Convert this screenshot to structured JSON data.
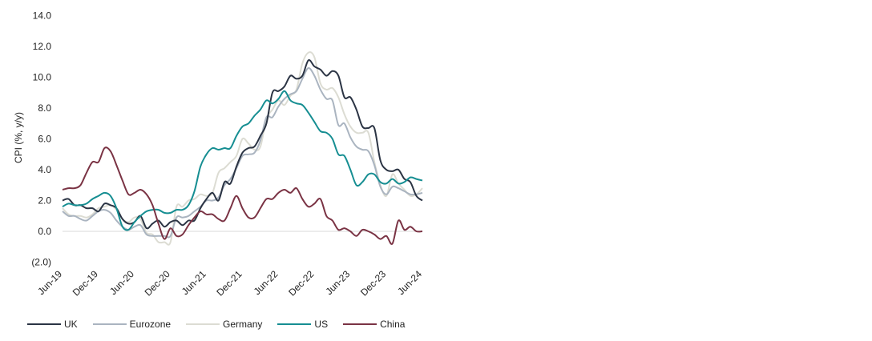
{
  "chart_data": {
    "type": "line",
    "ylabel": "CPI (%, y/y)",
    "ylim": [
      -2,
      14
    ],
    "y_ticks": [
      -2,
      0,
      2,
      4,
      6,
      8,
      10,
      12,
      14
    ],
    "y_tick_labels": [
      "(2.0)",
      "0.0",
      "2.0",
      "4.0",
      "6.0",
      "8.0",
      "10.0",
      "12.0",
      "14.0"
    ],
    "x_tick_labels": [
      "Jun-19",
      "Dec-19",
      "Jun-20",
      "Dec-20",
      "Jun-21",
      "Dec-21",
      "Jun-22",
      "Dec-22",
      "Jun-23",
      "Dec-23",
      "Jun-24"
    ],
    "x_start": "2019-06",
    "x_end": "2024-06",
    "grid": false,
    "legend_position": "bottom-left",
    "series": [
      {
        "name": "UK",
        "color": "#2b3444",
        "values": [
          2.0,
          2.1,
          1.7,
          1.7,
          1.5,
          1.5,
          1.3,
          1.8,
          1.7,
          1.5,
          0.8,
          0.5,
          0.6,
          1.0,
          0.2,
          0.5,
          0.7,
          0.3,
          0.6,
          0.7,
          0.4,
          0.7,
          0.7,
          1.5,
          2.1,
          2.5,
          2.0,
          3.2,
          3.1,
          4.2,
          5.1,
          5.4,
          5.5,
          6.2,
          7.0,
          9.0,
          9.1,
          9.4,
          10.1,
          9.9,
          10.1,
          11.1,
          10.7,
          10.5,
          10.1,
          10.4,
          10.1,
          8.7,
          8.7,
          7.9,
          6.8,
          6.7,
          6.7,
          4.6,
          4.0,
          3.9,
          4.0,
          3.4,
          3.2,
          2.3,
          2.0
        ]
      },
      {
        "name": "Eurozone",
        "color": "#aab4c0",
        "values": [
          1.3,
          1.0,
          1.0,
          0.8,
          0.7,
          1.0,
          1.3,
          1.4,
          1.2,
          0.7,
          0.3,
          0.1,
          0.3,
          0.4,
          -0.2,
          -0.3,
          -0.3,
          -0.3,
          -0.3,
          0.9,
          0.9,
          1.0,
          1.3,
          1.6,
          2.0,
          2.0,
          2.2,
          3.0,
          3.4,
          4.1,
          4.9,
          5.0,
          5.1,
          5.9,
          7.4,
          7.4,
          8.1,
          8.6,
          8.9,
          9.1,
          9.9,
          10.6,
          10.1,
          9.2,
          8.6,
          8.5,
          6.9,
          7.0,
          6.1,
          5.5,
          5.3,
          5.2,
          4.3,
          2.9,
          2.4,
          2.9,
          2.8,
          2.6,
          2.4,
          2.4,
          2.5
        ]
      },
      {
        "name": "Germany",
        "color": "#dcdcd3",
        "values": [
          1.5,
          1.1,
          1.0,
          1.0,
          0.9,
          1.1,
          1.5,
          1.6,
          1.7,
          1.4,
          0.8,
          0.6,
          0.9,
          0.8,
          -0.1,
          -0.2,
          -0.7,
          -0.7,
          -0.7,
          1.6,
          1.6,
          2.0,
          2.1,
          2.4,
          2.3,
          2.5,
          3.8,
          4.1,
          4.5,
          4.9,
          6.0,
          5.7,
          5.3,
          5.5,
          7.3,
          7.9,
          8.5,
          8.2,
          8.8,
          9.2,
          10.9,
          11.6,
          11.3,
          9.6,
          9.2,
          9.3,
          8.7,
          7.6,
          6.8,
          6.4,
          6.4,
          6.4,
          4.5,
          3.0,
          2.3,
          3.7,
          3.1,
          2.7,
          2.3,
          2.4,
          2.8
        ]
      },
      {
        "name": "US",
        "color": "#168e92",
        "values": [
          1.6,
          1.8,
          1.7,
          1.7,
          1.8,
          2.1,
          2.3,
          2.5,
          2.3,
          1.5,
          0.3,
          0.1,
          0.6,
          1.0,
          1.3,
          1.4,
          1.4,
          1.2,
          1.2,
          1.4,
          1.4,
          1.7,
          2.6,
          4.2,
          5.0,
          5.4,
          5.3,
          5.4,
          5.4,
          6.2,
          6.8,
          7.0,
          7.5,
          7.9,
          8.5,
          8.3,
          8.6,
          9.1,
          8.5,
          8.3,
          8.2,
          7.7,
          7.1,
          6.5,
          6.4,
          6.0,
          5.0,
          4.9,
          4.0,
          3.0,
          3.2,
          3.7,
          3.7,
          3.2,
          3.1,
          3.4,
          3.1,
          3.2,
          3.5,
          3.4,
          3.3
        ]
      },
      {
        "name": "China",
        "color": "#7a3344",
        "values": [
          2.7,
          2.8,
          2.8,
          3.0,
          3.8,
          4.5,
          4.5,
          5.4,
          5.2,
          4.3,
          3.3,
          2.4,
          2.5,
          2.7,
          2.4,
          1.7,
          0.5,
          -0.5,
          0.2,
          -0.3,
          -0.2,
          0.4,
          0.9,
          1.3,
          1.1,
          1.1,
          0.8,
          0.7,
          1.5,
          2.3,
          1.5,
          0.9,
          0.9,
          1.5,
          2.1,
          2.1,
          2.5,
          2.7,
          2.5,
          2.8,
          2.1,
          1.6,
          1.8,
          2.1,
          1.0,
          0.7,
          0.1,
          0.2,
          0.0,
          -0.3,
          0.1,
          0.0,
          -0.2,
          -0.5,
          -0.3,
          -0.8,
          0.7,
          0.1,
          0.3,
          0.0,
          0.0
        ]
      }
    ]
  }
}
